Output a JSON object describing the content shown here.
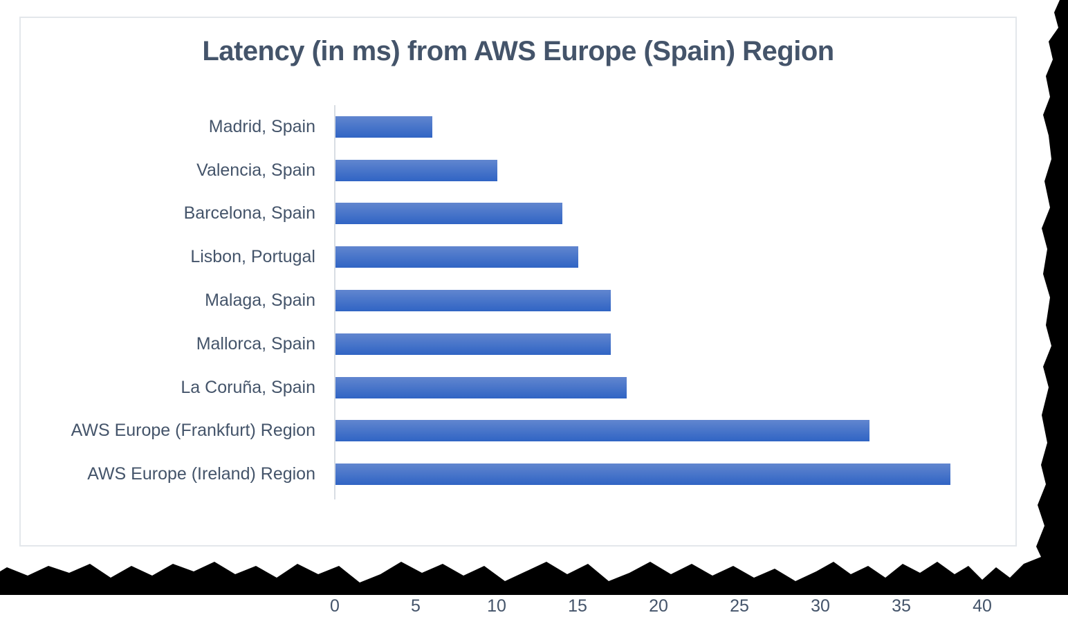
{
  "chart_data": {
    "type": "bar",
    "orientation": "horizontal",
    "title": "Latency (in ms) from AWS Europe (Spain) Region",
    "categories": [
      "Madrid, Spain",
      "Valencia, Spain",
      "Barcelona, Spain",
      "Lisbon, Portugal",
      "Malaga, Spain",
      "Mallorca, Spain",
      "La Coruña, Spain",
      "AWS Europe (Frankfurt) Region",
      "AWS Europe (Ireland) Region"
    ],
    "values": [
      6,
      10,
      14,
      15,
      17,
      17,
      18,
      33,
      38
    ],
    "xlabel": "",
    "ylabel": "",
    "xlim": [
      0,
      40
    ],
    "xticks": [
      0,
      5,
      10,
      15,
      20,
      25,
      30,
      35,
      40
    ],
    "grid": false,
    "legend": false,
    "bar_color_top": "#6186cf",
    "bar_color_bottom": "#3064c4",
    "axis_line_color": "#d8dde3",
    "text_color": "#44546a",
    "chart_border_color": "#e3e7eb"
  },
  "decoration": {
    "torn_edge_color": "#000000"
  }
}
